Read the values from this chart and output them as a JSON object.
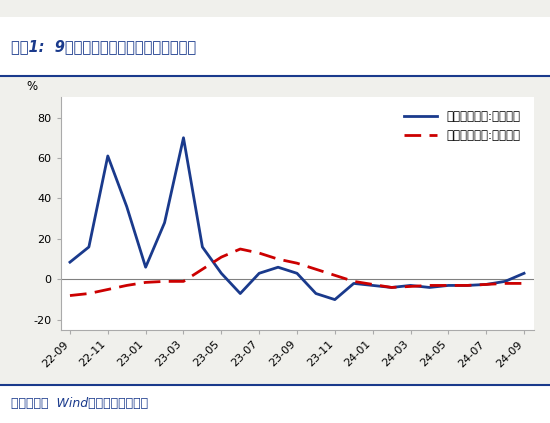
{
  "title": "图表1:  9月一般公共财政收入同比降幅收窄",
  "source": "资料来源：  Wind，国盛证券研究所",
  "ylabel": "%",
  "ylim": [
    -25,
    90
  ],
  "yticks": [
    -20,
    0,
    20,
    40,
    60,
    80
  ],
  "bg_color": "#f0f0ec",
  "plot_bg_color": "#ffffff",
  "x_labels": [
    "22-09",
    "22-11",
    "23-01",
    "23-03",
    "23-05",
    "23-07",
    "23-09",
    "23-11",
    "24-01",
    "24-03",
    "24-05",
    "24-07",
    "24-09"
  ],
  "monthly_yoy": {
    "label": "公共财政收入:当月同比",
    "color": "#1a3a8c",
    "linewidth": 2.0,
    "x_indices": [
      0,
      1,
      2,
      3,
      4,
      5,
      6,
      7,
      8,
      9,
      10,
      11,
      12,
      13,
      14,
      15,
      16,
      17,
      18,
      19,
      20,
      21,
      22,
      23,
      24
    ],
    "y": [
      8.5,
      16,
      61,
      36,
      6,
      28,
      70,
      16,
      3,
      -7,
      3,
      6,
      3,
      -7,
      -10,
      -2,
      -3,
      -4,
      -3,
      -4,
      -3,
      -3,
      -2.5,
      -1,
      3
    ]
  },
  "cumulative_yoy": {
    "label": "公共财政收入:累计同比",
    "color": "#cc0000",
    "linewidth": 2.0,
    "x_indices": [
      0,
      1,
      2,
      3,
      4,
      5,
      6,
      7,
      8,
      9,
      10,
      11,
      12,
      13,
      14,
      15,
      16,
      17,
      18,
      19,
      20,
      21,
      22,
      23,
      24
    ],
    "y": [
      -8,
      -7,
      -5,
      -3,
      -1.5,
      -1,
      -1,
      5,
      11,
      15,
      13,
      10,
      8,
      5,
      2,
      -1,
      -2.5,
      -4,
      -3.5,
      -3,
      -3,
      -3,
      -2.5,
      -2,
      -2
    ]
  },
  "title_color": "#1a3a8c",
  "title_fontsize": 10.5,
  "source_color": "#1a3a8c",
  "source_fontsize": 9,
  "line_color": "#1a3a8c",
  "legend_fontsize": 8.5,
  "tick_fontsize": 8,
  "ylabel_fontsize": 8.5
}
